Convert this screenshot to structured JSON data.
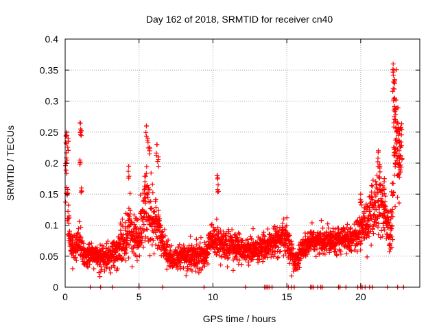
{
  "chart_data": {
    "type": "scatter",
    "title": "Day 162 of 2018, SRMTID for receiver cn40",
    "xlabel": "GPS time / hours",
    "ylabel": "SRMTID / TECUs",
    "xlim": [
      0,
      24
    ],
    "ylim": [
      0,
      0.4
    ],
    "grid": true,
    "marker": "+",
    "x_ticks": [
      0,
      5,
      10,
      15,
      20
    ],
    "x_tick_labels": [
      "0",
      "5",
      "10",
      "15",
      "20"
    ],
    "y_ticks": [
      0,
      0.05,
      0.1,
      0.15,
      0.2,
      0.25,
      0.3,
      0.35,
      0.4
    ],
    "y_tick_labels": [
      "0",
      "0.05",
      "0.1",
      "0.15",
      "0.2",
      "0.25",
      "0.3",
      "0.35",
      "0.4"
    ],
    "series": [
      {
        "name": "SRMTID",
        "color": "#ff0000",
        "profile": {
          "hours": [
            0,
            0.1,
            0.2,
            0.3,
            0.5,
            0.8,
            1.0,
            1.2,
            1.5,
            2.0,
            2.5,
            3.0,
            3.5,
            4.0,
            4.3,
            4.5,
            5.0,
            5.3,
            5.5,
            5.8,
            6.2,
            6.5,
            7.0,
            7.5,
            8.0,
            8.5,
            9.0,
            9.5,
            9.8,
            10.0,
            10.5,
            11.0,
            11.5,
            12.0,
            12.5,
            13.0,
            13.5,
            14.0,
            14.5,
            15.0,
            15.5,
            15.8,
            16.0,
            16.5,
            17.0,
            17.5,
            18.0,
            18.5,
            19.0,
            19.5,
            20.0,
            20.5,
            21.0,
            21.3,
            21.5,
            21.8,
            22.0,
            22.2,
            22.4,
            22.6,
            22.8
          ],
          "typical": [
            0.16,
            0.2,
            0.12,
            0.08,
            0.065,
            0.06,
            0.07,
            0.055,
            0.05,
            0.05,
            0.045,
            0.05,
            0.06,
            0.07,
            0.1,
            0.09,
            0.08,
            0.12,
            0.14,
            0.11,
            0.1,
            0.08,
            0.05,
            0.045,
            0.05,
            0.05,
            0.05,
            0.05,
            0.08,
            0.075,
            0.07,
            0.065,
            0.065,
            0.06,
            0.06,
            0.06,
            0.065,
            0.07,
            0.075,
            0.08,
            0.04,
            0.05,
            0.06,
            0.07,
            0.075,
            0.075,
            0.08,
            0.075,
            0.08,
            0.08,
            0.09,
            0.11,
            0.13,
            0.14,
            0.13,
            0.1,
            0.08,
            0.15,
            0.25,
            0.18,
            0.22
          ],
          "spread": [
            0.05,
            0.05,
            0.04,
            0.02,
            0.015,
            0.015,
            0.03,
            0.015,
            0.015,
            0.015,
            0.015,
            0.015,
            0.02,
            0.025,
            0.04,
            0.03,
            0.03,
            0.05,
            0.06,
            0.04,
            0.03,
            0.025,
            0.015,
            0.015,
            0.015,
            0.018,
            0.018,
            0.018,
            0.02,
            0.02,
            0.02,
            0.018,
            0.018,
            0.015,
            0.015,
            0.015,
            0.015,
            0.02,
            0.02,
            0.02,
            0.015,
            0.015,
            0.015,
            0.015,
            0.015,
            0.015,
            0.015,
            0.015,
            0.015,
            0.015,
            0.02,
            0.03,
            0.04,
            0.05,
            0.04,
            0.03,
            0.03,
            0.06,
            0.06,
            0.05,
            0.05
          ]
        },
        "peaks": [
          {
            "x": 0.1,
            "y": 0.25
          },
          {
            "x": 0.2,
            "y": 0.24
          },
          {
            "x": 1.0,
            "y": 0.265
          },
          {
            "x": 1.05,
            "y": 0.255
          },
          {
            "x": 1.0,
            "y": 0.205
          },
          {
            "x": 1.1,
            "y": 0.16
          },
          {
            "x": 4.3,
            "y": 0.195
          },
          {
            "x": 5.5,
            "y": 0.26
          },
          {
            "x": 5.6,
            "y": 0.24
          },
          {
            "x": 5.7,
            "y": 0.225
          },
          {
            "x": 6.2,
            "y": 0.23
          },
          {
            "x": 6.3,
            "y": 0.21
          },
          {
            "x": 5.4,
            "y": 0.17
          },
          {
            "x": 10.3,
            "y": 0.18
          },
          {
            "x": 10.35,
            "y": 0.165
          },
          {
            "x": 20.0,
            "y": 0.15
          },
          {
            "x": 21.2,
            "y": 0.22
          },
          {
            "x": 21.3,
            "y": 0.195
          },
          {
            "x": 21.6,
            "y": 0.175
          },
          {
            "x": 22.2,
            "y": 0.36
          },
          {
            "x": 22.25,
            "y": 0.35
          },
          {
            "x": 22.3,
            "y": 0.335
          },
          {
            "x": 22.2,
            "y": 0.32
          },
          {
            "x": 22.3,
            "y": 0.305
          },
          {
            "x": 22.25,
            "y": 0.285
          },
          {
            "x": 22.35,
            "y": 0.27
          },
          {
            "x": 22.5,
            "y": 0.265
          },
          {
            "x": 22.6,
            "y": 0.255
          },
          {
            "x": 22.4,
            "y": 0.24
          },
          {
            "x": 22.6,
            "y": 0.22
          },
          {
            "x": 22.35,
            "y": 0.2
          }
        ],
        "zero_values_at_hours": [
          1.7,
          2.4,
          3.2,
          5.0,
          6.6,
          9.4,
          12.2,
          13.5,
          13.6,
          13.7,
          13.8,
          14.0,
          15.1,
          15.3,
          15.5,
          16.6,
          16.7,
          16.8,
          17.1,
          17.3,
          17.4,
          18.5,
          18.6,
          19.0,
          19.8,
          20.0,
          20.1,
          20.3,
          20.6,
          20.8,
          21.8,
          22.5,
          22.9
        ]
      }
    ]
  }
}
